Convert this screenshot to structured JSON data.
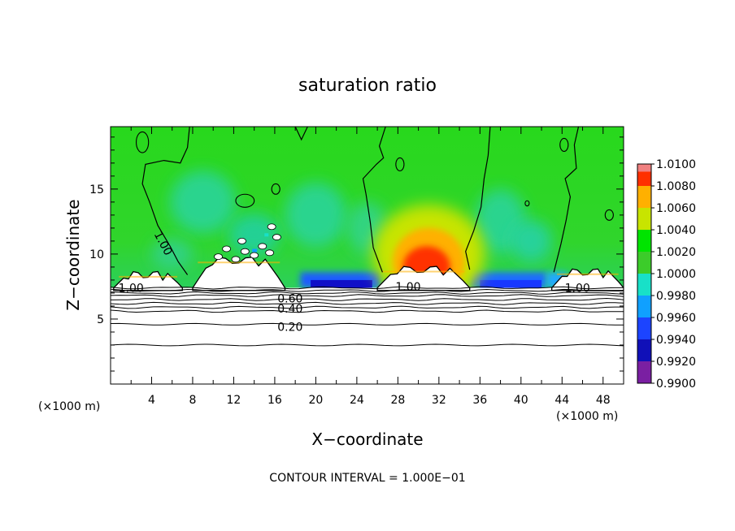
{
  "chart_data": {
    "type": "heatmap",
    "title": "saturation ratio",
    "xlabel": "X−coordinate",
    "ylabel": "Z−coordinate",
    "x_unit_left": "(×1000 m)",
    "x_unit_right": "(×1000 m)",
    "xlim": [
      0,
      50
    ],
    "ylim": [
      0,
      19.8
    ],
    "x_ticks": [
      4,
      8,
      12,
      16,
      20,
      24,
      28,
      32,
      36,
      40,
      44,
      48
    ],
    "y_ticks": [
      5,
      10,
      15
    ],
    "footer": "CONTOUR INTERVAL = 1.000E−01",
    "contour_interval": 0.1,
    "colorbar": {
      "levels": [
        0.99,
        0.992,
        0.994,
        0.996,
        0.998,
        1.0,
        1.002,
        1.004,
        1.006,
        1.008,
        1.01
      ],
      "labels": [
        "0.9900",
        "0.9920",
        "0.9940",
        "0.9960",
        "0.9980",
        "1.0000",
        "1.0020",
        "1.0040",
        "1.0060",
        "1.0080",
        "1.0100"
      ],
      "colors": [
        "#7a1fa2",
        "#1010b8",
        "#1c44ff",
        "#10a0ff",
        "#18e0c8",
        "#3ccc2a",
        "#00e400",
        "#c8e400",
        "#ffb000",
        "#ff3000",
        "#f08080"
      ]
    },
    "contour_labels": [
      {
        "text": "1.00",
        "x": 4.8,
        "y": 11.0
      },
      {
        "text": "1.00",
        "x": 2.0,
        "y": 7.4
      },
      {
        "text": "1.00",
        "x": 29.0,
        "y": 7.5
      },
      {
        "text": "1.00",
        "x": 45.5,
        "y": 7.4
      },
      {
        "text": "0.60",
        "x": 17.5,
        "y": 6.6
      },
      {
        "text": "0.40",
        "x": 17.5,
        "y": 5.8
      },
      {
        "text": "0.20",
        "x": 17.5,
        "y": 4.4
      }
    ],
    "stable_layer_contours": [
      3.0,
      4.6,
      5.6,
      5.9,
      6.2,
      6.5,
      6.8,
      7.0,
      7.2,
      7.4
    ],
    "cloud_tops": [
      {
        "x0": 0.3,
        "x1": 7.0,
        "top": 8.4
      },
      {
        "x0": 8.0,
        "x1": 17.0,
        "top": 9.5
      },
      {
        "x0": 26.0,
        "x1": 35.0,
        "top": 8.8
      },
      {
        "x0": 43.0,
        "x1": 50.0,
        "top": 8.6
      }
    ],
    "supersaturation_peak": {
      "x": 31.0,
      "z": 11.0,
      "value": 1.008
    }
  }
}
